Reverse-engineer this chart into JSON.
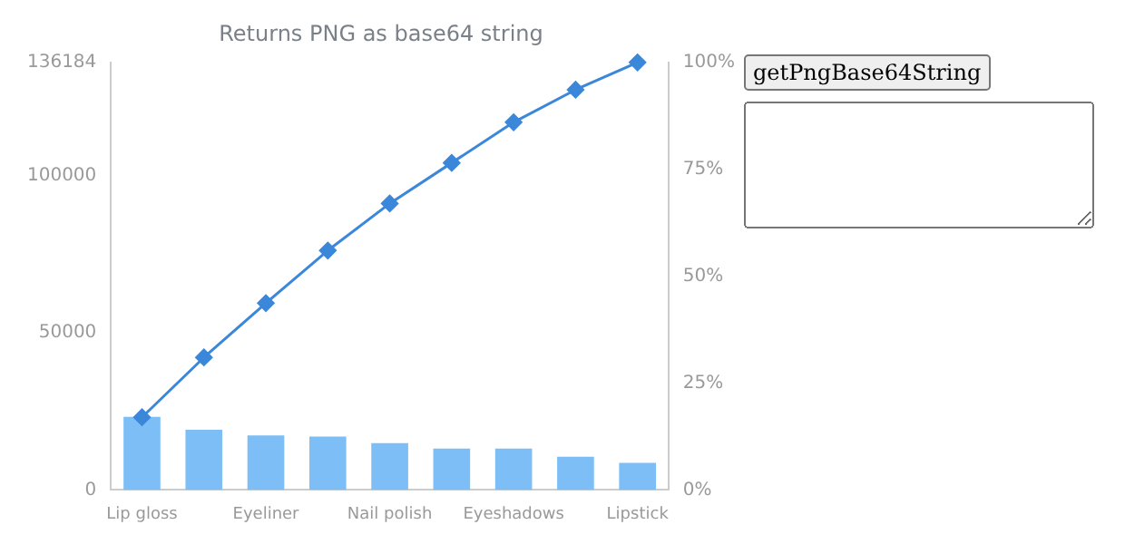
{
  "chart_data": {
    "type": "bar",
    "title": "Returns PNG as base64 string",
    "categories": [
      "Lip gloss",
      null,
      "Eyeliner",
      null,
      "Nail polish",
      null,
      "Eyeshadows",
      null,
      "Lipstick"
    ],
    "series": [
      {
        "color": "#7cbef5",
        "values": [
          23300,
          19200,
          17400,
          17000,
          14900,
          13200,
          13200,
          10600,
          8600
        ]
      },
      {
        "type": "line",
        "axis": "y2",
        "color": "#3b87d9",
        "values": [
          17,
          31,
          43.7,
          56,
          67,
          76.5,
          86,
          93.6,
          100
        ]
      }
    ],
    "ylim": [
      0,
      136184
    ],
    "yticks": [
      0,
      50000,
      100000,
      136184
    ],
    "y2lim": [
      0,
      100
    ],
    "y2ticks": [
      {
        "value": 0,
        "label": "0%"
      },
      {
        "value": 25,
        "label": "25%"
      },
      {
        "value": 50,
        "label": "50%"
      },
      {
        "value": 75,
        "label": "75%"
      },
      {
        "value": 100,
        "label": "100%"
      }
    ],
    "grid": false,
    "legend": false,
    "marker": "diamond",
    "line_style": "solid",
    "annotations": [
      "getPngBase64String"
    ]
  }
}
